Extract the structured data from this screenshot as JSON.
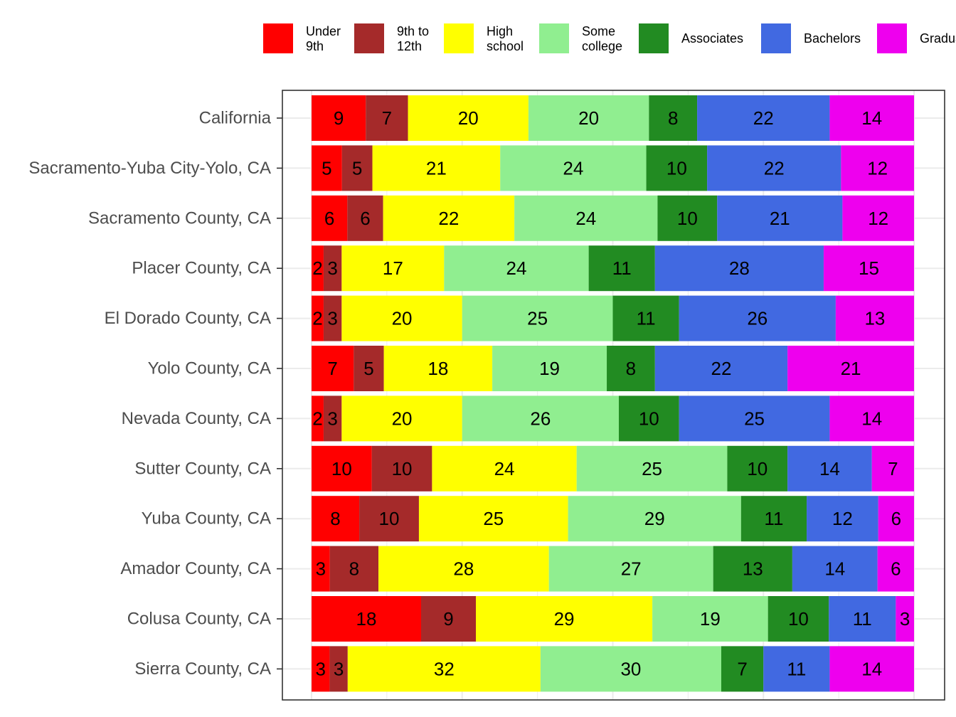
{
  "chart_data": {
    "type": "bar",
    "orientation": "horizontal",
    "stacked": true,
    "normalized_percent": true,
    "grid": true,
    "legend_position": "top",
    "title": "",
    "xlabel": "",
    "ylabel": "",
    "categories": [
      "California",
      "Sacramento-Yuba City-Yolo, CA",
      "Sacramento County, CA",
      "Placer County, CA",
      "El Dorado County, CA",
      "Yolo County, CA",
      "Nevada County, CA",
      "Sutter County, CA",
      "Yuba County, CA",
      "Amador County, CA",
      "Colusa County, CA",
      "Sierra County, CA"
    ],
    "series": [
      {
        "name": "Under 9th",
        "legend_lines": [
          "Under",
          "9th"
        ],
        "color": "#ff0000",
        "values": [
          9,
          5,
          6,
          2,
          2,
          7,
          2,
          10,
          8,
          3,
          18,
          3
        ]
      },
      {
        "name": "9th to 12th",
        "legend_lines": [
          "9th to",
          "12th"
        ],
        "color": "#a52a2a",
        "values": [
          7,
          5,
          6,
          3,
          3,
          5,
          3,
          10,
          10,
          8,
          9,
          3
        ]
      },
      {
        "name": "High school",
        "legend_lines": [
          "High",
          "school"
        ],
        "color": "#ffff00",
        "values": [
          20,
          21,
          22,
          17,
          20,
          18,
          20,
          24,
          25,
          28,
          29,
          32
        ]
      },
      {
        "name": "Some college",
        "legend_lines": [
          "Some",
          "college"
        ],
        "color": "#90ee90",
        "values": [
          20,
          24,
          24,
          24,
          25,
          19,
          26,
          25,
          29,
          27,
          19,
          30
        ]
      },
      {
        "name": "Associates",
        "legend_lines": [
          "Associates"
        ],
        "color": "#228b22",
        "values": [
          8,
          10,
          10,
          11,
          11,
          8,
          10,
          10,
          11,
          13,
          10,
          7
        ]
      },
      {
        "name": "Bachelors",
        "legend_lines": [
          "Bachelors"
        ],
        "color": "#4169e1",
        "values": [
          22,
          22,
          21,
          28,
          26,
          22,
          25,
          14,
          12,
          14,
          11,
          11
        ]
      },
      {
        "name": "Graduate",
        "legend_lines": [
          "Graduate"
        ],
        "color": "#ee00ee",
        "values": [
          14,
          12,
          12,
          15,
          13,
          21,
          14,
          7,
          6,
          6,
          3,
          14
        ]
      }
    ]
  }
}
